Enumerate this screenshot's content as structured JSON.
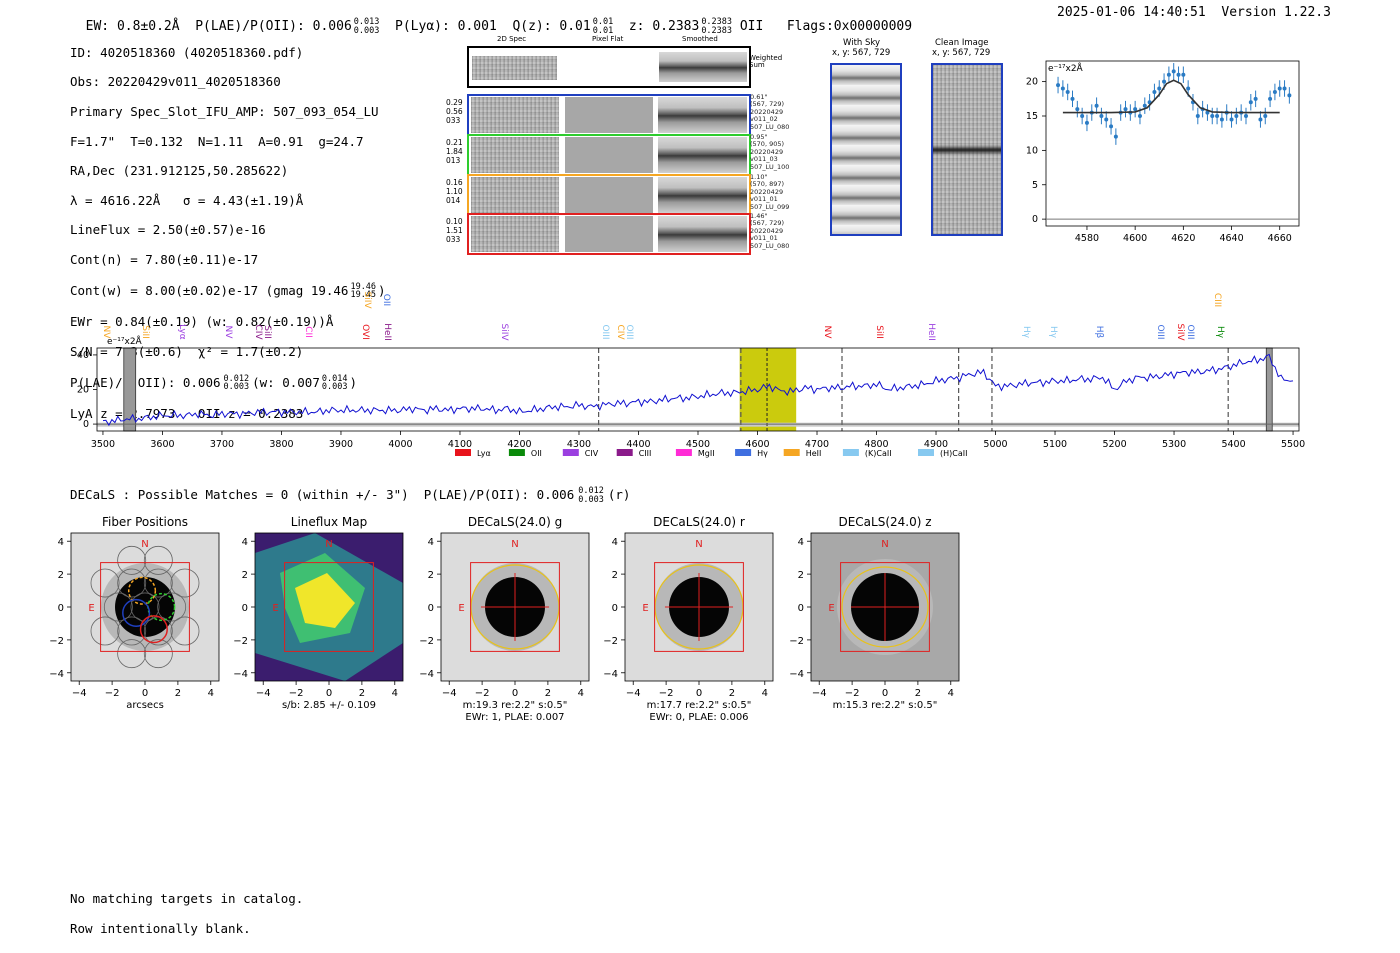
{
  "header": {
    "ew": "EW: 0.8±0.2Å",
    "plae_label": "P(LAE)/P(OII): 0.006",
    "plae_hi": "0.013",
    "plae_lo": "0.003",
    "plya": "P(Lyα): 0.001",
    "qz_label": "Q(z): 0.01",
    "qz_hi": "0.01",
    "qz_lo": "0.01",
    "z_label": "z: 0.2383",
    "z_hi": "0.2383",
    "z_lo": "0.2383",
    "z_line": "OII",
    "flags": "Flags:0x00000009",
    "timestamp": "2025-01-06 14:40:51",
    "version": "Version 1.22.3"
  },
  "info": {
    "id": "ID: 4020518360 (4020518360.pdf)",
    "obs": "Obs: 20220429v011_4020518360",
    "primary": "Primary Spec_Slot_IFU_AMP: 507_093_054_LU",
    "params": "F=1.7\"  T=0.132  N=1.11  A=0.91  g=24.7",
    "radec": "RA,Dec (231.912125,50.285622)",
    "lambda": "λ = 4616.22Å   σ = 4.43(±1.19)Å",
    "lineflux": "LineFlux = 2.50(±0.57)e-16",
    "contn": "Cont(n) = 7.80(±0.11)e-17",
    "contw": "Cont(w) = 8.00(±0.02)e-17 (gmag 19.46",
    "contw_hi": "19.46",
    "contw_lo": "19.45",
    "contw_close": ")",
    "ewr": "EWr = 0.84(±0.19) (w: 0.82(±0.19))Å",
    "sn": "S/N = 7.3(±0.6)  χ² = 1.7(±0.2)",
    "plae": "P(LAE)/P(OII): 0.006",
    "plae_hi": "0.012",
    "plae_lo": "0.003",
    "plae_w": "(w: 0.007",
    "plae_w_hi": "0.014",
    "plae_w_lo": "0.003",
    "plae_w_close": ")",
    "lyaz": "LyA z = 2.7973   OII z = 0.2383"
  },
  "cutouts": {
    "col_titles": [
      "2D Spec",
      "Pixel Flat",
      "Smoothed"
    ],
    "weighted_label": "Weighted\nSum",
    "rows": [
      {
        "nums": [
          "0.29",
          "0.56",
          "033"
        ],
        "stamp": [
          "0.61\"",
          "(567, 729)",
          "20220429",
          "v011_02",
          "507_LU_080"
        ],
        "color": "#1f3fbf"
      },
      {
        "nums": [
          "0.21",
          "1.84",
          "013"
        ],
        "stamp": [
          "0.95\"",
          "(570, 905)",
          "20220429",
          "v011_03",
          "507_LU_100"
        ],
        "color": "#2ecc2e"
      },
      {
        "nums": [
          "0.16",
          "1.10",
          "014"
        ],
        "stamp": [
          "1.10\"",
          "(570, 897)",
          "20220429",
          "v011_01",
          "507_LU_099"
        ],
        "color": "#f5a623"
      },
      {
        "nums": [
          "0.10",
          "1.51",
          "033"
        ],
        "stamp": [
          "1.46\"",
          "(567, 729)",
          "20220429",
          "v011_01",
          "507_LU_080"
        ],
        "color": "#e02020"
      }
    ]
  },
  "sky": {
    "with_sky": "With Sky",
    "with_sky_xy": "x, y: 567, 729",
    "clean": "Clean Image",
    "clean_xy": "x, y: 567, 729"
  },
  "zoom_chart": {
    "yunit": "e⁻¹⁷x2Å",
    "xticks": [
      4580,
      4600,
      4620,
      4640,
      4660
    ],
    "yticks": [
      0,
      5,
      10,
      15,
      20
    ]
  },
  "spectrum": {
    "yunit": "e⁻¹⁷x2Å",
    "xticks": [
      3500,
      3600,
      3700,
      3800,
      3900,
      4000,
      4100,
      4200,
      4300,
      4400,
      4500,
      4600,
      4700,
      4800,
      4900,
      5000,
      5100,
      5200,
      5300,
      5400,
      5500
    ],
    "yticks": [
      0,
      20,
      40
    ],
    "legend": [
      {
        "label": "Lyα",
        "color": "#e8141c"
      },
      {
        "label": "OII",
        "color": "#0a8a0a"
      },
      {
        "label": "CIV",
        "color": "#9b3fe0"
      },
      {
        "label": "CIII",
        "color": "#8a1a8a"
      },
      {
        "label": "MgII",
        "color": "#ff2bd6"
      },
      {
        "label": "Hγ",
        "color": "#3f6fe0"
      },
      {
        "label": "HeII",
        "color": "#f5a623"
      },
      {
        "label": "(K)CaII",
        "color": "#87c9f0"
      },
      {
        "label": "(H)CaII",
        "color": "#87c9f0"
      }
    ],
    "line_labels": [
      {
        "t": "NV",
        "x": 104,
        "c": "#f5a623",
        "row": 2
      },
      {
        "t": "SiII",
        "x": 143,
        "c": "#f5a623",
        "row": 2
      },
      {
        "t": "Lyα",
        "x": 180,
        "c": "#9b3fe0",
        "row": 2
      },
      {
        "t": "NV",
        "x": 226,
        "c": "#9b3fe0",
        "row": 2
      },
      {
        "t": "CIV",
        "x": 256,
        "c": "#8a1a8a",
        "row": 2
      },
      {
        "t": "SiII",
        "x": 265,
        "c": "#8a1a8a",
        "row": 2
      },
      {
        "t": "CII",
        "x": 306,
        "c": "#ff2bd6",
        "row": 2
      },
      {
        "t": "OVI",
        "x": 363,
        "c": "#e8141c",
        "row": 2
      },
      {
        "t": "SiIV",
        "x": 365,
        "c": "#f5a623",
        "row": 1
      },
      {
        "t": "OII",
        "x": 384,
        "c": "#3f6fe0",
        "row": 1
      },
      {
        "t": "HeII",
        "x": 385,
        "c": "#8a1a8a",
        "row": 2
      },
      {
        "t": "SiIV",
        "x": 502,
        "c": "#9b3fe0",
        "row": 2
      },
      {
        "t": "OIII",
        "x": 603,
        "c": "#87c9f0",
        "row": 2
      },
      {
        "t": "CIV",
        "x": 618,
        "c": "#f5a623",
        "row": 2
      },
      {
        "t": "OIII",
        "x": 627,
        "c": "#87c9f0",
        "row": 2
      },
      {
        "t": "NV",
        "x": 825,
        "c": "#e8141c",
        "row": 2
      },
      {
        "t": "SiII",
        "x": 877,
        "c": "#e8141c",
        "row": 2
      },
      {
        "t": "HeII",
        "x": 929,
        "c": "#9b3fe0",
        "row": 2
      },
      {
        "t": "Hγ",
        "x": 1024,
        "c": "#87c9f0",
        "row": 2
      },
      {
        "t": "Hγ",
        "x": 1051,
        "c": "#87c9f0",
        "row": 2
      },
      {
        "t": "Hβ",
        "x": 1097,
        "c": "#3f6fe0",
        "row": 2
      },
      {
        "t": "OIII",
        "x": 1158,
        "c": "#3f6fe0",
        "row": 2
      },
      {
        "t": "SiIV",
        "x": 1178,
        "c": "#e8141c",
        "row": 2
      },
      {
        "t": "OIII",
        "x": 1188,
        "c": "#3f6fe0",
        "row": 2
      },
      {
        "t": "CIII",
        "x": 1215,
        "c": "#f5a623",
        "row": 1
      },
      {
        "t": "Hγ",
        "x": 1218,
        "c": "#0a8a0a",
        "row": 2
      }
    ]
  },
  "decals": {
    "summary": "DECaLS : Possible Matches = 0 (within +/- 3\")  P(LAE)/P(OII): 0.006",
    "summary_hi": "0.012",
    "summary_lo": "0.003",
    "summary_band": "(r)",
    "panels": [
      {
        "title": "Fiber Positions",
        "sub1": "arcsecs",
        "sub2": ""
      },
      {
        "title": "Lineflux Map",
        "sub1": "s/b: 2.85 +/- 0.109",
        "sub2": ""
      },
      {
        "title": "DECaLS(24.0) g",
        "sub1": "m:19.3  re:2.2\"  s:0.5\"",
        "sub2": "EWr: 1, PLAE: 0.007"
      },
      {
        "title": "DECaLS(24.0) r",
        "sub1": "m:17.7  re:2.2\"  s:0.5\"",
        "sub2": "EWr: 0, PLAE: 0.006"
      },
      {
        "title": "DECaLS(24.0) z",
        "sub1": "m:15.3  re:2.2\"  s:0.5\"",
        "sub2": ""
      }
    ],
    "north": "N",
    "east": "E",
    "axis_ticks": [
      "−4",
      "−2",
      "0",
      "2",
      "4"
    ]
  },
  "footer": {
    "line1": "No matching targets in catalog.",
    "line2": "Row intentionally blank."
  },
  "chart_data": [
    {
      "type": "scatter",
      "title": "",
      "ylabel": "e⁻¹⁷x2Å",
      "xlim": [
        4563,
        4668
      ],
      "ylim": [
        -1,
        23
      ],
      "series": [
        {
          "name": "data",
          "x": [
            4568,
            4570,
            4572,
            4574,
            4576,
            4578,
            4580,
            4582,
            4584,
            4586,
            4588,
            4590,
            4592,
            4594,
            4596,
            4598,
            4600,
            4602,
            4604,
            4606,
            4608,
            4610,
            4612,
            4614,
            4616,
            4618,
            4620,
            4622,
            4624,
            4626,
            4628,
            4630,
            4632,
            4634,
            4636,
            4638,
            4640,
            4642,
            4644,
            4646,
            4648,
            4650,
            4652,
            4654,
            4656,
            4658,
            4660,
            4662,
            4664
          ],
          "y": [
            19.5,
            19,
            18.5,
            17.5,
            16,
            15,
            14,
            15.5,
            16.5,
            15,
            14.5,
            13.5,
            12,
            15.5,
            16,
            15.5,
            16,
            15,
            16.5,
            17,
            18.5,
            19,
            20,
            21,
            21.5,
            21,
            21,
            19,
            17,
            15,
            16,
            15.5,
            15,
            15,
            14.5,
            15.5,
            14.5,
            15,
            15.5,
            15,
            17,
            17.5,
            14.5,
            15,
            17.5,
            18.5,
            19,
            19,
            18
          ]
        },
        {
          "name": "gaussian fit",
          "x": [
            4570,
            4580,
            4590,
            4600,
            4605,
            4610,
            4613,
            4616,
            4619,
            4622,
            4627,
            4632,
            4640,
            4650,
            4660
          ],
          "y": [
            15.5,
            15.5,
            15.5,
            15.6,
            16.2,
            18.1,
            19.7,
            20.2,
            19.7,
            18.1,
            16.2,
            15.6,
            15.5,
            15.5,
            15.5
          ]
        }
      ]
    },
    {
      "type": "line",
      "title": "",
      "xlabel": "",
      "ylabel": "e⁻¹⁷x2Å",
      "xlim": [
        3490,
        5510
      ],
      "ylim": [
        -4,
        44
      ],
      "highlight_band": [
        4570,
        4665
      ],
      "center_line": 4616,
      "dashed_lines": [
        4333,
        4572,
        4742,
        4938,
        4994,
        5391
      ],
      "masked_bands": [
        [
          3535,
          3555
        ],
        [
          5455,
          5465
        ]
      ],
      "x": [
        3500,
        3520,
        3540,
        3560,
        3580,
        3600,
        3620,
        3640,
        3660,
        3680,
        3700,
        3720,
        3740,
        3760,
        3780,
        3800,
        3820,
        3840,
        3860,
        3880,
        3900,
        3920,
        3940,
        3960,
        3980,
        4000,
        4020,
        4040,
        4060,
        4080,
        4100,
        4120,
        4140,
        4160,
        4180,
        4200,
        4220,
        4240,
        4260,
        4280,
        4300,
        4320,
        4340,
        4360,
        4380,
        4400,
        4420,
        4440,
        4460,
        4480,
        4500,
        4520,
        4540,
        4560,
        4580,
        4600,
        4620,
        4640,
        4660,
        4680,
        4700,
        4720,
        4740,
        4760,
        4780,
        4800,
        4820,
        4840,
        4860,
        4880,
        4900,
        4920,
        4940,
        4960,
        4980,
        5000,
        5020,
        5040,
        5060,
        5080,
        5100,
        5120,
        5140,
        5160,
        5180,
        5200,
        5220,
        5240,
        5260,
        5280,
        5300,
        5320,
        5340,
        5360,
        5380,
        5400,
        5420,
        5440,
        5460,
        5480,
        5500
      ],
      "y": [
        1,
        2,
        3,
        3,
        4,
        5,
        5,
        5,
        6,
        5,
        6,
        6,
        6,
        7,
        7,
        7,
        7,
        7,
        7,
        8,
        8,
        8,
        8,
        8,
        8,
        8,
        9,
        8,
        9,
        8,
        9,
        9,
        9,
        8,
        9,
        7,
        8,
        9,
        10,
        10,
        11,
        10,
        11,
        12,
        12,
        13,
        13,
        14,
        15,
        15,
        16,
        17,
        18,
        18,
        19,
        20,
        22,
        19,
        19,
        21,
        20,
        21,
        21,
        22,
        22,
        23,
        20,
        21,
        22,
        23,
        25,
        26,
        27,
        29,
        30,
        22,
        22,
        23,
        24,
        24,
        25,
        25,
        26,
        26,
        27,
        20,
        25,
        27,
        27,
        28,
        29,
        30,
        30,
        31,
        32,
        34,
        36,
        37,
        39,
        26,
        25
      ]
    }
  ]
}
